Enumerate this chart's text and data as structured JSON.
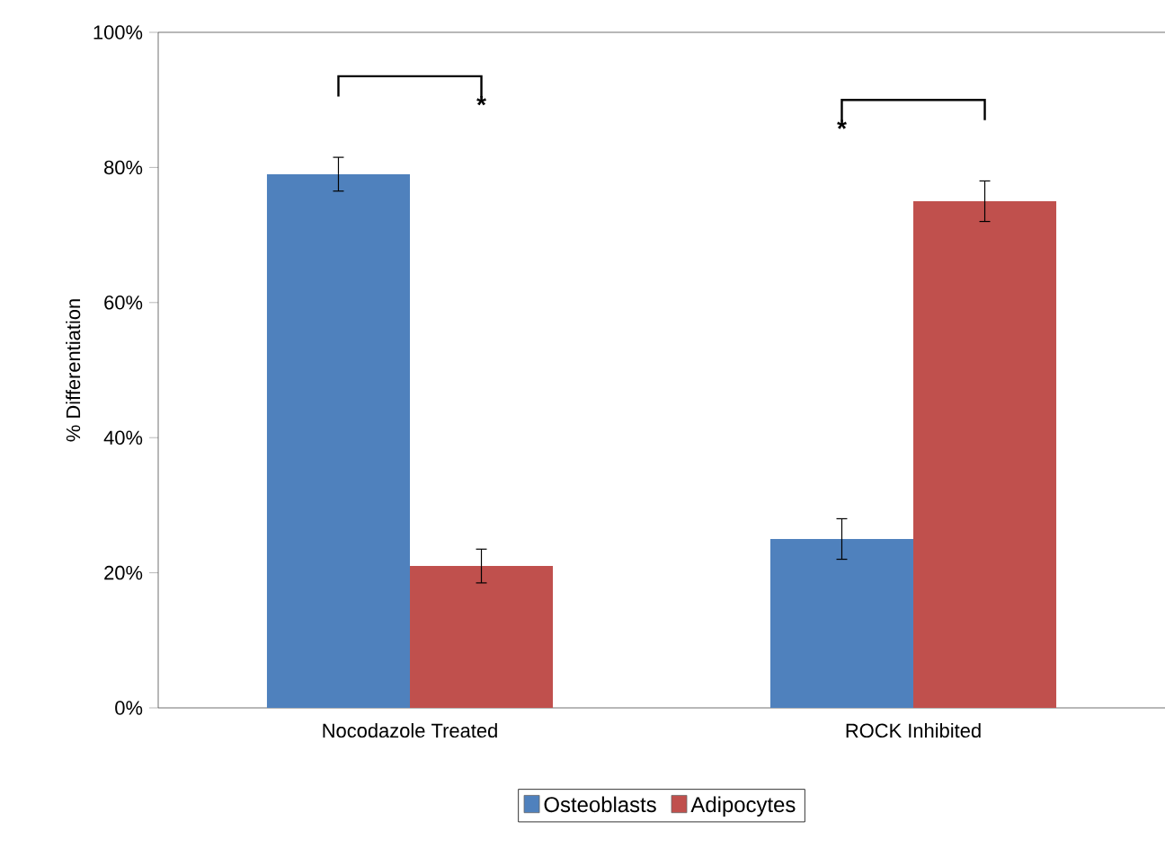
{
  "chart_data": {
    "type": "bar",
    "ylabel": "% Differentiation",
    "categories": [
      "Nocodazole Treated",
      "ROCK Inhibited"
    ],
    "series": [
      {
        "name": "Osteoblasts",
        "color": "#4f81bd",
        "values": [
          79,
          25
        ],
        "errors": [
          2.5,
          3
        ]
      },
      {
        "name": "Adipocytes",
        "color": "#c0504d",
        "values": [
          21,
          75
        ],
        "errors": [
          2.5,
          3
        ]
      }
    ],
    "ylim": [
      0,
      100
    ],
    "yticks": [
      {
        "value": 0,
        "label": "0%"
      },
      {
        "value": 20,
        "label": "20%"
      },
      {
        "value": 40,
        "label": "40%"
      },
      {
        "value": 60,
        "label": "60%"
      },
      {
        "value": 80,
        "label": "80%"
      },
      {
        "value": 100,
        "label": "100%"
      }
    ],
    "annotations": [
      "*",
      "*"
    ],
    "grid": false,
    "legend": "bottom"
  }
}
